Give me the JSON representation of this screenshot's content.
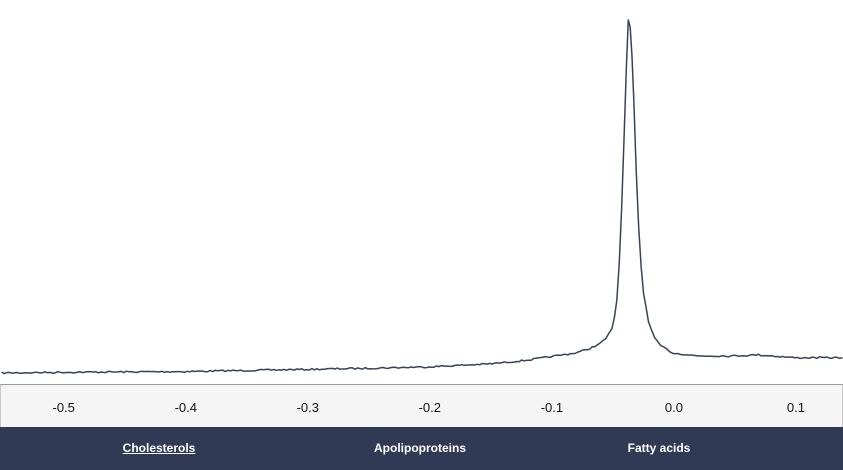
{
  "colors": {
    "line": "#3a4257",
    "nav_background": "#313a55",
    "nav_text": "#ffffff",
    "axis_background": "#f5f5f5"
  },
  "chart_data": {
    "type": "line",
    "title": "",
    "xlabel": "",
    "ylabel": "",
    "xlim": [
      -0.5514,
      0.1394
    ],
    "ylim": [
      -0.5,
      10.5
    ],
    "x_ticks": [
      "-0.5",
      "-0.4",
      "-0.3",
      "-0.2",
      "-0.1",
      "0.0",
      "0.1"
    ],
    "grid": false,
    "legend": "none",
    "series": [
      {
        "x": [
          -0.55,
          -0.5,
          -0.45,
          -0.4,
          -0.35,
          -0.3,
          -0.25,
          -0.2,
          -0.15,
          -0.12,
          -0.1,
          -0.08,
          -0.07,
          -0.06,
          -0.055,
          -0.05,
          -0.048,
          -0.046,
          -0.044,
          -0.042,
          -0.04,
          -0.038,
          -0.0365,
          -0.035,
          -0.0335,
          -0.032,
          -0.03,
          -0.028,
          -0.026,
          -0.024,
          -0.022,
          -0.02,
          -0.015,
          -0.01,
          -0.005,
          0.0,
          0.02,
          0.05,
          0.07,
          0.1,
          0.13,
          0.139
        ],
        "y": [
          0.0,
          0.02,
          0.03,
          0.04,
          0.07,
          0.1,
          0.13,
          0.17,
          0.25,
          0.35,
          0.45,
          0.55,
          0.65,
          0.8,
          0.95,
          1.2,
          1.5,
          2.0,
          3.0,
          4.5,
          6.5,
          8.5,
          9.7,
          9.5,
          8.7,
          7.5,
          5.5,
          4.0,
          2.9,
          2.2,
          1.8,
          1.4,
          0.95,
          0.75,
          0.65,
          0.55,
          0.47,
          0.47,
          0.5,
          0.42,
          0.42,
          0.42
        ]
      }
    ]
  },
  "nav": {
    "items": [
      {
        "label": "Cholesterols"
      },
      {
        "label": "Apolipoproteins"
      },
      {
        "label": "Fatty acids"
      }
    ]
  }
}
